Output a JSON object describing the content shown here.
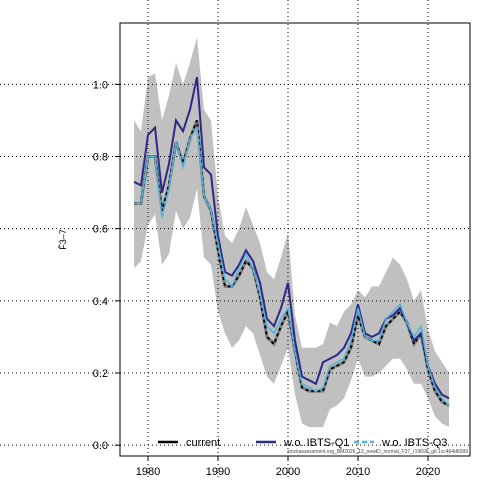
{
  "chart_data": {
    "type": "line",
    "ylabel": "F̄3–7",
    "xlim": [
      1976,
      2026
    ],
    "ylim": [
      -0.03,
      1.17
    ],
    "xticks": [
      1980,
      1990,
      2000,
      2010,
      2020
    ],
    "yticks": [
      0.0,
      0.2,
      0.4,
      0.6,
      0.8,
      1.0
    ],
    "ytick_labels": [
      "0.0",
      "0.2",
      "0.4",
      "0.6",
      "0.8",
      "1.0"
    ],
    "grid": true,
    "legend_position": "bottom",
    "x": [
      1978,
      1979,
      1980,
      1981,
      1982,
      1983,
      1984,
      1985,
      1986,
      1987,
      1988,
      1989,
      1990,
      1991,
      1992,
      1993,
      1994,
      1995,
      1996,
      1997,
      1998,
      1999,
      2000,
      2001,
      2002,
      2003,
      2004,
      2005,
      2006,
      2007,
      2008,
      2009,
      2010,
      2011,
      2012,
      2013,
      2014,
      2015,
      2016,
      2017,
      2018,
      2019,
      2020,
      2021,
      2022,
      2023
    ],
    "band": {
      "lower": [
        0.49,
        0.51,
        0.61,
        0.64,
        0.5,
        0.53,
        0.65,
        0.6,
        0.63,
        0.71,
        0.52,
        0.5,
        0.37,
        0.31,
        0.27,
        0.29,
        0.33,
        0.31,
        0.25,
        0.19,
        0.17,
        0.22,
        0.27,
        0.14,
        0.06,
        0.05,
        0.05,
        0.05,
        0.1,
        0.11,
        0.13,
        0.18,
        0.24,
        0.19,
        0.19,
        0.2,
        0.22,
        0.24,
        0.24,
        0.21,
        0.17,
        0.17,
        0.13,
        0.08,
        0.06,
        0.05
      ],
      "upper": [
        0.9,
        0.87,
        1.02,
        1.03,
        0.9,
        0.97,
        1.06,
        1.0,
        1.06,
        1.13,
        0.93,
        0.9,
        0.69,
        0.58,
        0.56,
        0.6,
        0.66,
        0.61,
        0.56,
        0.48,
        0.46,
        0.52,
        0.59,
        0.36,
        0.27,
        0.27,
        0.27,
        0.28,
        0.34,
        0.33,
        0.37,
        0.39,
        0.43,
        0.41,
        0.44,
        0.44,
        0.48,
        0.52,
        0.5,
        0.46,
        0.4,
        0.43,
        0.32,
        0.26,
        0.23,
        0.2
      ]
    },
    "series": [
      {
        "name": "current",
        "values": [
          0.67,
          0.67,
          0.8,
          0.8,
          0.65,
          0.72,
          0.84,
          0.78,
          0.85,
          0.9,
          0.69,
          0.65,
          0.54,
          0.44,
          0.44,
          0.47,
          0.51,
          0.49,
          0.41,
          0.3,
          0.28,
          0.33,
          0.37,
          0.26,
          0.16,
          0.15,
          0.15,
          0.15,
          0.21,
          0.22,
          0.23,
          0.27,
          0.36,
          0.3,
          0.29,
          0.28,
          0.33,
          0.35,
          0.37,
          0.34,
          0.28,
          0.31,
          0.21,
          0.15,
          0.12,
          0.11
        ],
        "color": "#000000",
        "style": "dashed-on-grey"
      },
      {
        "name": "w.o. IBTS-Q1",
        "values": [
          0.73,
          0.72,
          0.86,
          0.88,
          0.7,
          0.78,
          0.9,
          0.87,
          0.93,
          1.02,
          0.77,
          0.75,
          0.58,
          0.48,
          0.47,
          0.5,
          0.54,
          0.51,
          0.45,
          0.35,
          0.33,
          0.38,
          0.45,
          0.29,
          0.19,
          0.18,
          0.17,
          0.23,
          0.24,
          0.25,
          0.27,
          0.31,
          0.39,
          0.31,
          0.3,
          0.31,
          0.35,
          0.36,
          0.38,
          0.34,
          0.29,
          0.31,
          0.22,
          0.17,
          0.14,
          0.13
        ],
        "color": "#2e2888",
        "style": "solid"
      },
      {
        "name": "w.o. IBTS-Q3",
        "values": [
          0.67,
          0.67,
          0.8,
          0.8,
          0.63,
          0.71,
          0.84,
          0.77,
          0.85,
          0.88,
          0.69,
          0.65,
          0.56,
          0.46,
          0.44,
          0.49,
          0.53,
          0.49,
          0.42,
          0.33,
          0.31,
          0.35,
          0.38,
          0.26,
          0.17,
          0.16,
          0.15,
          0.16,
          0.22,
          0.23,
          0.24,
          0.29,
          0.38,
          0.3,
          0.29,
          0.29,
          0.35,
          0.37,
          0.39,
          0.34,
          0.3,
          0.33,
          0.22,
          0.16,
          0.13,
          0.11
        ],
        "color": "#4fb3e0",
        "style": "solid"
      }
    ],
    "source_note": "stockassessment.org_BM2026_12_newID_normal_F37_r19696_git:1cc464d6099"
  },
  "legend": {
    "items": [
      {
        "label": "current",
        "color": "#000000"
      },
      {
        "label": "w.o. IBTS-Q1",
        "color": "#2e2888"
      },
      {
        "label": "w.o. IBTS-Q3",
        "color": "#4fb3e0"
      }
    ]
  }
}
